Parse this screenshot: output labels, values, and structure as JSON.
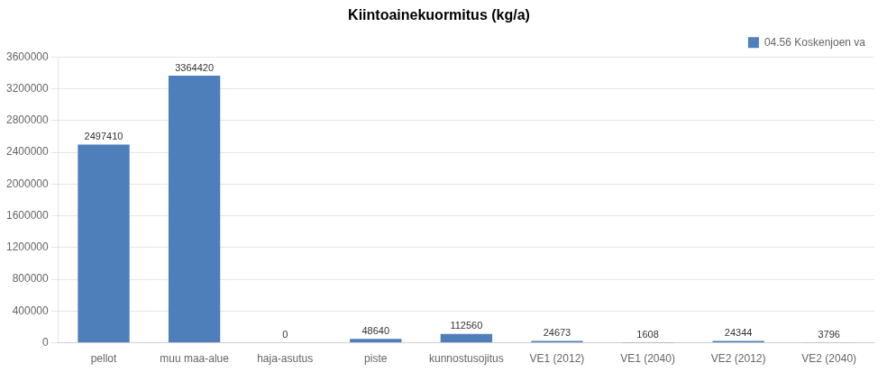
{
  "chart_data": {
    "type": "bar",
    "title": "Kiintoainekuormitus (kg/a)",
    "categories": [
      "pellot",
      "muu maa-alue",
      "haja-asutus",
      "piste",
      "kunnostusojitus",
      "VE1 (2012)",
      "VE1 (2040)",
      "VE2 (2012)",
      "VE2 (2040)"
    ],
    "series": [
      {
        "name": "04.56 Koskenjoen va",
        "color": "#4e7fba",
        "values": [
          2497410,
          3364420,
          0,
          48640,
          112560,
          24673,
          1608,
          24344,
          3796
        ]
      }
    ],
    "ylim": [
      0,
      3600000
    ],
    "yticks": [
      0,
      400000,
      800000,
      1200000,
      1600000,
      2000000,
      2400000,
      2800000,
      3200000,
      3600000
    ],
    "grid": true,
    "legend": "upper right",
    "data_labels": true
  }
}
